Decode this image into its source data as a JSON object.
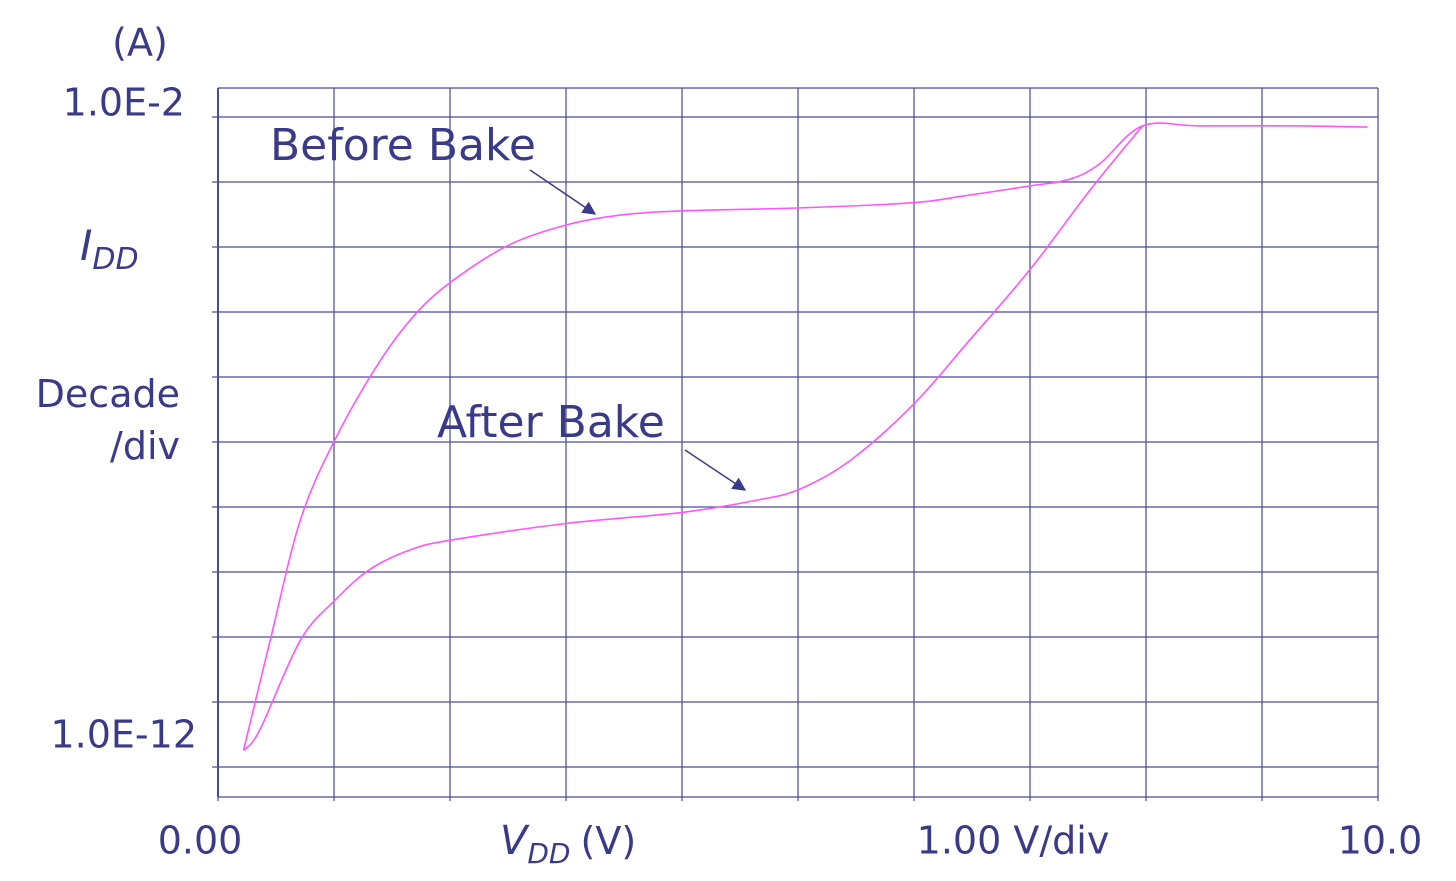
{
  "chart_data": {
    "type": "line",
    "y_unit": "(A)",
    "ylabel": {
      "symbol": "I",
      "subscript": "DD"
    },
    "xlabel": {
      "symbol": "V",
      "subscript": "DD",
      "unit": "(V)"
    },
    "x_division": {
      "value": 1,
      "label": "1.00 V/div"
    },
    "y_division": {
      "value": 10,
      "label": "Decade /div"
    },
    "log_y": true,
    "grid": true,
    "xlim": [
      0,
      10
    ],
    "xticks": [
      {
        "value": 0,
        "label": "0.00"
      },
      {
        "value": 10,
        "label": "10.0"
      }
    ],
    "ylim": [
      3e-13,
      0.03
    ],
    "yticks": [
      {
        "value": 1e-12,
        "label": "1.0E-12"
      },
      {
        "value": 0.01,
        "label": "1.0E-2"
      }
    ],
    "series": [
      {
        "name": "Before Bake",
        "color": "#ff55ff",
        "x": [
          0.22,
          0.45,
          0.71,
          1.01,
          1.4,
          1.74,
          2.09,
          2.52,
          3.01,
          3.47,
          4.01,
          5.02,
          5.99,
          6.4,
          7.0,
          7.34,
          7.6,
          7.97,
          8.47,
          9.33,
          9.91
        ],
        "values": [
          1.8e-12,
          8.9e-11,
          6.3e-09,
          1.1e-07,
          1.8e-06,
          1.1e-05,
          3.7e-05,
          0.00011,
          0.00022,
          0.00031,
          0.00036,
          0.0004,
          0.00048,
          0.0006,
          0.00087,
          0.0011,
          0.0019,
          0.0073,
          0.0073,
          0.0073,
          0.007
        ]
      },
      {
        "name": "After Bake",
        "color": "#ff55ff",
        "x": [
          0.22,
          0.36,
          0.71,
          1.01,
          1.31,
          1.66,
          2.01,
          3.01,
          4.01,
          4.67,
          5.02,
          5.45,
          5.99,
          6.48,
          7.0,
          7.52,
          7.97
        ],
        "values": [
          1.8e-12,
          3.7e-12,
          8.9e-11,
          3.7e-10,
          1.1e-09,
          2.2e-09,
          3.1e-09,
          5.6e-09,
          8.3e-09,
          1.3e-08,
          1.9e-08,
          5.2e-08,
          3.7e-07,
          3.7e-06,
          4.5e-05,
          0.00076,
          0.0073
        ]
      }
    ]
  }
}
